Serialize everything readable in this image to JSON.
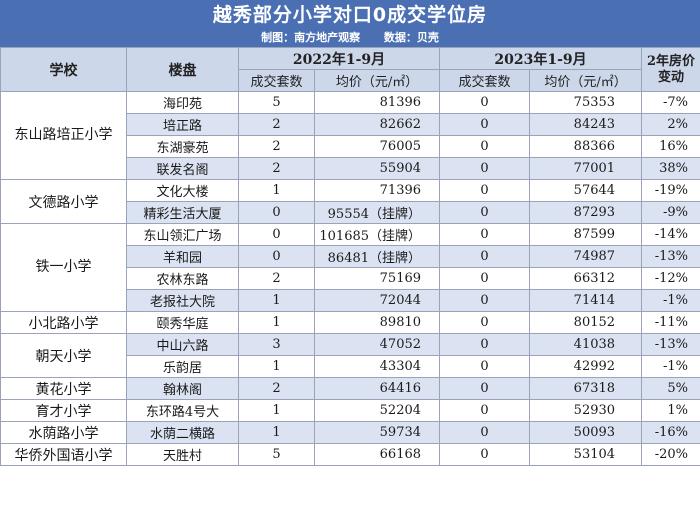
{
  "title": "越秀部分小学对口0成交学位房",
  "credit": {
    "producer": "制图：南方地产观察",
    "data_source": "数据：贝壳"
  },
  "headers": {
    "school": "学校",
    "estate": "楼盘",
    "period_2022": "2022年1-9月",
    "period_2023": "2023年1-9月",
    "deals": "成交套数",
    "avg_price": "均价（元/㎡）",
    "change": "2年房价变动"
  },
  "rows": [
    {
      "school": "东山路培正小学",
      "estate": "海印苑",
      "deals_2022": "5",
      "price_2022": "81396",
      "deals_2023": "0",
      "price_2023": "75353",
      "change": "-7%"
    },
    {
      "school": "东山路培正小学",
      "estate": "培正路",
      "deals_2022": "2",
      "price_2022": "82662",
      "deals_2023": "0",
      "price_2023": "84243",
      "change": "2%"
    },
    {
      "school": "东山路培正小学",
      "estate": "东湖豪苑",
      "deals_2022": "2",
      "price_2022": "76005",
      "deals_2023": "0",
      "price_2023": "88366",
      "change": "16%"
    },
    {
      "school": "东山路培正小学",
      "estate": "联发名阁",
      "deals_2022": "2",
      "price_2022": "55904",
      "deals_2023": "0",
      "price_2023": "77001",
      "change": "38%"
    },
    {
      "school": "文德路小学",
      "estate": "文化大楼",
      "deals_2022": "1",
      "price_2022": "71396",
      "deals_2023": "0",
      "price_2023": "57644",
      "change": "-19%"
    },
    {
      "school": "文德路小学",
      "estate": "精彩生活大厦",
      "deals_2022": "0",
      "price_2022": "95554（挂牌）",
      "deals_2023": "0",
      "price_2023": "87293",
      "change": "-9%"
    },
    {
      "school": "铁一小学",
      "estate": "东山领汇广场",
      "deals_2022": "0",
      "price_2022": "101685（挂牌）",
      "deals_2023": "0",
      "price_2023": "87599",
      "change": "-14%"
    },
    {
      "school": "铁一小学",
      "estate": "羊和园",
      "deals_2022": "0",
      "price_2022": "86481（挂牌）",
      "deals_2023": "0",
      "price_2023": "74987",
      "change": "-13%"
    },
    {
      "school": "铁一小学",
      "estate": "农林东路",
      "deals_2022": "2",
      "price_2022": "75169",
      "deals_2023": "0",
      "price_2023": "66312",
      "change": "-12%"
    },
    {
      "school": "铁一小学",
      "estate": "老报社大院",
      "deals_2022": "1",
      "price_2022": "72044",
      "deals_2023": "0",
      "price_2023": "71414",
      "change": "-1%"
    },
    {
      "school": "小北路小学",
      "estate": "颐秀华庭",
      "deals_2022": "1",
      "price_2022": "89810",
      "deals_2023": "0",
      "price_2023": "80152",
      "change": "-11%"
    },
    {
      "school": "朝天小学",
      "estate": "中山六路",
      "deals_2022": "3",
      "price_2022": "47052",
      "deals_2023": "0",
      "price_2023": "41038",
      "change": "-13%"
    },
    {
      "school": "朝天小学",
      "estate": "乐韵居",
      "deals_2022": "1",
      "price_2022": "43304",
      "deals_2023": "0",
      "price_2023": "42992",
      "change": "-1%"
    },
    {
      "school": "黄花小学",
      "estate": "翰林阁",
      "deals_2022": "2",
      "price_2022": "64416",
      "deals_2023": "0",
      "price_2023": "67318",
      "change": "5%"
    },
    {
      "school": "育才小学",
      "estate": "东环路4号大",
      "deals_2022": "1",
      "price_2022": "52204",
      "deals_2023": "0",
      "price_2023": "52930",
      "change": "1%"
    },
    {
      "school": "水荫路小学",
      "estate": "水荫二横路",
      "deals_2022": "1",
      "price_2022": "59734",
      "deals_2023": "0",
      "price_2023": "50093",
      "change": "-16%"
    },
    {
      "school": "华侨外国语小学",
      "estate": "天胜村",
      "deals_2022": "5",
      "price_2022": "66168",
      "deals_2023": "0",
      "price_2023": "53104",
      "change": "-20%"
    }
  ],
  "colors": {
    "header_bg": "#4a6fb3",
    "column_header_bg": "#cdd7ea",
    "stripe_bg": "#dbe3f2",
    "border": "#9aa3b8"
  }
}
